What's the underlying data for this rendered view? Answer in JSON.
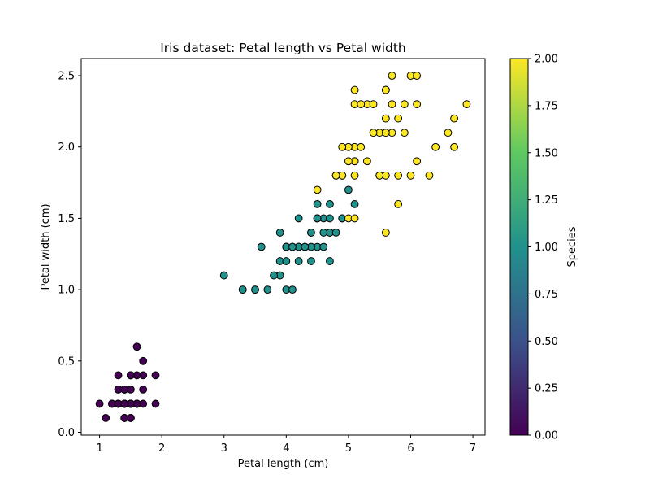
{
  "chart_data": {
    "type": "scatter",
    "title": "Iris dataset: Petal length vs Petal width",
    "xlabel": "Petal length (cm)",
    "ylabel": "Petal width (cm)",
    "xlim": [
      0.705,
      7.195
    ],
    "ylim": [
      -0.02,
      2.62
    ],
    "xticks": [
      1,
      2,
      3,
      4,
      5,
      6,
      7
    ],
    "yticks": [
      0.0,
      0.5,
      1.0,
      1.5,
      2.0,
      2.5
    ],
    "xtick_labels": [
      "1",
      "2",
      "3",
      "4",
      "5",
      "6",
      "7"
    ],
    "ytick_labels": [
      "0.0",
      "0.5",
      "1.0",
      "1.5",
      "2.0",
      "2.5"
    ],
    "grid": false,
    "marker_edge_color": "#000000",
    "colormap": "viridis",
    "colormap_stops": [
      "#440154",
      "#3b528b",
      "#21918c",
      "#5ec962",
      "#fde725"
    ],
    "colorbar": {
      "label": "Species",
      "range": [
        0.0,
        2.0
      ],
      "ticks": [
        0.0,
        0.25,
        0.5,
        0.75,
        1.0,
        1.25,
        1.5,
        1.75,
        2.0
      ],
      "tick_labels": [
        "0.00",
        "0.25",
        "0.50",
        "0.75",
        "1.00",
        "1.25",
        "1.50",
        "1.75",
        "2.00"
      ]
    },
    "series": [
      {
        "color_value": 0,
        "color": "#440154",
        "x": [
          1.4,
          1.4,
          1.3,
          1.5,
          1.4,
          1.7,
          1.4,
          1.5,
          1.4,
          1.5,
          1.5,
          1.6,
          1.4,
          1.1,
          1.2,
          1.5,
          1.3,
          1.4,
          1.7,
          1.5,
          1.7,
          1.5,
          1.0,
          1.7,
          1.9,
          1.6,
          1.6,
          1.5,
          1.4,
          1.6,
          1.6,
          1.5,
          1.5,
          1.4,
          1.5,
          1.2,
          1.3,
          1.4,
          1.3,
          1.5,
          1.3,
          1.3,
          1.3,
          1.6,
          1.9,
          1.4,
          1.6,
          1.4,
          1.5,
          1.4
        ],
        "y": [
          0.2,
          0.2,
          0.2,
          0.2,
          0.2,
          0.4,
          0.3,
          0.2,
          0.2,
          0.1,
          0.2,
          0.2,
          0.1,
          0.1,
          0.2,
          0.4,
          0.4,
          0.3,
          0.3,
          0.3,
          0.2,
          0.4,
          0.2,
          0.5,
          0.2,
          0.2,
          0.4,
          0.2,
          0.2,
          0.2,
          0.2,
          0.4,
          0.1,
          0.2,
          0.2,
          0.2,
          0.2,
          0.1,
          0.2,
          0.2,
          0.3,
          0.3,
          0.2,
          0.6,
          0.4,
          0.3,
          0.2,
          0.2,
          0.2,
          0.2
        ]
      },
      {
        "color_value": 1,
        "color": "#21918c",
        "x": [
          4.7,
          4.5,
          4.9,
          4.0,
          4.6,
          4.5,
          4.7,
          3.3,
          4.6,
          3.9,
          3.5,
          4.2,
          4.0,
          4.7,
          3.6,
          4.4,
          4.5,
          4.1,
          4.5,
          3.9,
          4.8,
          4.0,
          4.9,
          4.7,
          4.3,
          4.4,
          4.8,
          5.0,
          4.5,
          3.5,
          3.8,
          3.7,
          3.9,
          5.1,
          4.5,
          4.5,
          4.7,
          4.4,
          4.1,
          4.0,
          4.4,
          4.6,
          4.0,
          3.3,
          4.2,
          4.2,
          4.2,
          4.3,
          3.0,
          4.1
        ],
        "y": [
          1.4,
          1.5,
          1.5,
          1.3,
          1.5,
          1.3,
          1.6,
          1.0,
          1.3,
          1.4,
          1.0,
          1.5,
          1.0,
          1.4,
          1.3,
          1.4,
          1.5,
          1.0,
          1.5,
          1.1,
          1.8,
          1.3,
          1.5,
          1.2,
          1.3,
          1.4,
          1.4,
          1.7,
          1.5,
          1.0,
          1.1,
          1.0,
          1.2,
          1.6,
          1.5,
          1.6,
          1.5,
          1.3,
          1.3,
          1.3,
          1.2,
          1.4,
          1.2,
          1.0,
          1.3,
          1.2,
          1.3,
          1.3,
          1.1,
          1.3
        ]
      },
      {
        "color_value": 2,
        "color": "#fde725",
        "x": [
          6.0,
          5.1,
          5.9,
          5.6,
          5.8,
          6.6,
          4.5,
          6.3,
          5.8,
          6.1,
          5.1,
          5.3,
          5.5,
          5.0,
          5.1,
          5.3,
          5.5,
          6.7,
          6.9,
          5.0,
          5.7,
          4.9,
          6.7,
          4.9,
          5.7,
          6.0,
          4.8,
          4.9,
          5.6,
          5.8,
          6.1,
          6.4,
          5.6,
          5.1,
          5.6,
          6.1,
          5.6,
          5.5,
          4.8,
          5.4,
          5.6,
          5.1,
          5.1,
          5.9,
          5.7,
          5.2,
          5.0,
          5.2,
          5.4,
          5.1
        ],
        "y": [
          2.5,
          1.9,
          2.1,
          1.8,
          2.2,
          2.1,
          1.7,
          1.8,
          1.8,
          2.5,
          2.0,
          1.9,
          2.1,
          2.0,
          2.4,
          2.3,
          1.8,
          2.2,
          2.3,
          1.5,
          2.3,
          2.0,
          2.0,
          1.8,
          2.1,
          1.8,
          1.8,
          1.8,
          2.1,
          1.6,
          1.9,
          2.0,
          2.2,
          1.5,
          1.4,
          2.3,
          2.4,
          1.8,
          1.8,
          2.1,
          2.4,
          2.3,
          1.9,
          2.3,
          2.5,
          2.3,
          1.9,
          2.0,
          2.3,
          1.8
        ]
      }
    ]
  }
}
